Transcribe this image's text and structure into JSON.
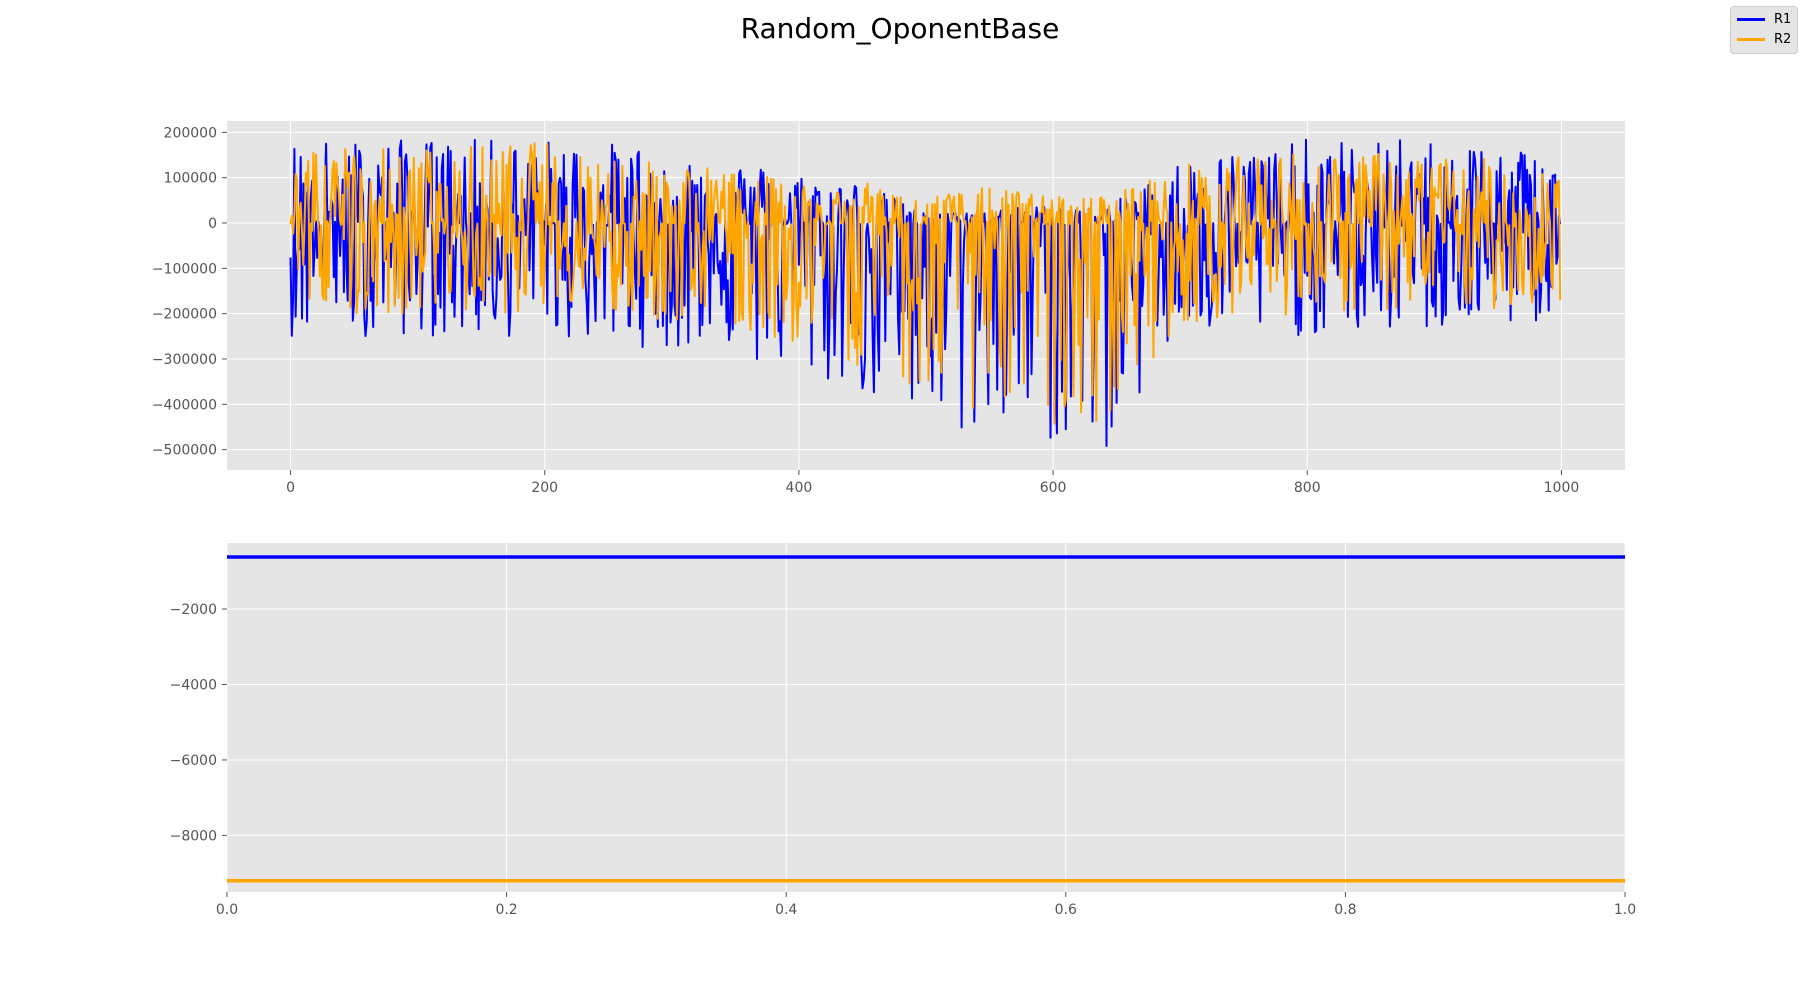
{
  "title": "Random_OponentBase",
  "legend": [
    {
      "label": "R1",
      "color": "#0000ff"
    },
    {
      "label": "R2",
      "color": "#ffa500"
    }
  ],
  "chart_data": [
    {
      "type": "line",
      "xlim": [
        -50,
        1050
      ],
      "ylim": [
        -545000,
        225000
      ],
      "x_ticks": [
        0,
        200,
        400,
        600,
        800,
        1000
      ],
      "x_tick_labels": [
        "0",
        "200",
        "400",
        "600",
        "800",
        "1000"
      ],
      "y_ticks": [
        200000,
        100000,
        0,
        -100000,
        -200000,
        -300000,
        -400000,
        -500000
      ],
      "y_tick_labels": [
        "200000",
        "100000",
        "0",
        "−100000",
        "−200000",
        "−300000",
        "−400000",
        "−500000"
      ],
      "grid": true,
      "n_points": 1000,
      "series": [
        {
          "name": "R1",
          "color": "#0000ff",
          "profile": {
            "x": [
              0,
              100,
              200,
              300,
              400,
              450,
              500,
              550,
              600,
              640,
              700,
              800,
              900,
              1000
            ],
            "high": [
              185000,
              185000,
              185000,
              170000,
              110000,
              90000,
              20000,
              30000,
              40000,
              30000,
              140000,
              185000,
              185000,
              170000
            ],
            "low": [
              -250000,
              -250000,
              -255000,
              -280000,
              -340000,
              -380000,
              -480000,
              -460000,
              -490000,
              -510000,
              -250000,
              -250000,
              -240000,
              -220000
            ]
          }
        },
        {
          "name": "R2",
          "color": "#ffa500",
          "profile": {
            "x": [
              0,
              100,
              200,
              300,
              400,
              450,
              500,
              550,
              600,
              640,
              700,
              800,
              900,
              1000
            ],
            "high": [
              180000,
              165000,
              180000,
              140000,
              90000,
              90000,
              60000,
              80000,
              60000,
              60000,
              130000,
              165000,
              150000,
              130000
            ],
            "low": [
              -200000,
              -200000,
              -200000,
              -220000,
              -270000,
              -320000,
              -380000,
              -420000,
              -460000,
              -470000,
              -220000,
              -200000,
              -200000,
              -180000
            ]
          }
        }
      ]
    },
    {
      "type": "line",
      "xlim": [
        0,
        1
      ],
      "ylim": [
        -9500,
        -250
      ],
      "x_ticks": [
        0.0,
        0.2,
        0.4,
        0.6,
        0.8,
        1.0
      ],
      "x_tick_labels": [
        "0.0",
        "0.2",
        "0.4",
        "0.6",
        "0.8",
        "1.0"
      ],
      "y_ticks": [
        -2000,
        -4000,
        -6000,
        -8000
      ],
      "y_tick_labels": [
        "−2000",
        "−4000",
        "−6000",
        "−8000"
      ],
      "grid": true,
      "series": [
        {
          "name": "R1",
          "color": "#0000ff",
          "x": [
            0,
            1
          ],
          "y": [
            -620,
            -620
          ]
        },
        {
          "name": "R2",
          "color": "#ffa500",
          "x": [
            0,
            1
          ],
          "y": [
            -9200,
            -9200
          ]
        }
      ]
    }
  ]
}
